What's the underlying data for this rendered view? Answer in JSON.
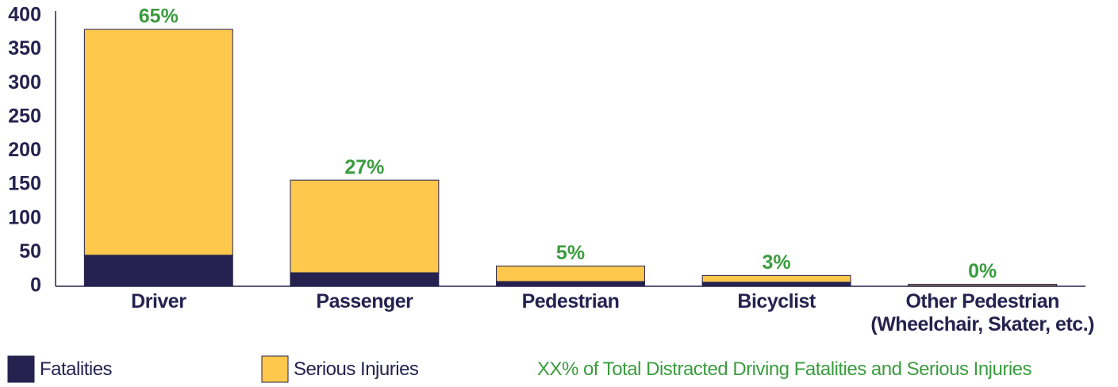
{
  "chart_data": {
    "type": "stacked_bar",
    "categories": [
      "Driver",
      "Passenger",
      "Pedestrian",
      "Bicyclist",
      "Other Pedestrian\n(Wheelchair, Skater, etc.)"
    ],
    "series": [
      {
        "name": "Fatalities",
        "color": "#25224f",
        "values": [
          46,
          20,
          7,
          6,
          1
        ]
      },
      {
        "name": "Serious Injuries",
        "color": "#fec84d",
        "values": [
          334,
          137,
          23,
          10,
          2
        ]
      }
    ],
    "shares": {
      "name": "XX% of Total Distracted Driving Fatalities and Serious Injuries",
      "color": "#3a9c3e",
      "values": [
        65,
        27,
        5,
        3,
        0
      ],
      "value_labels": [
        "65%",
        "27%",
        "5%",
        "3%",
        "0%"
      ]
    },
    "ylim": [
      0,
      400
    ],
    "yticks": [
      0,
      50,
      100,
      150,
      200,
      250,
      300,
      350,
      400
    ],
    "grid": false
  }
}
